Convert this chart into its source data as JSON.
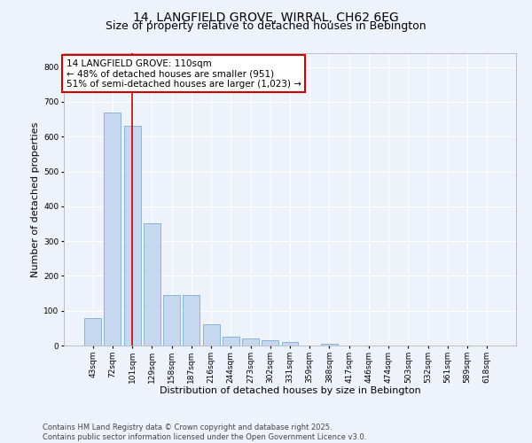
{
  "title_line1": "14, LANGFIELD GROVE, WIRRAL, CH62 6EG",
  "title_line2": "Size of property relative to detached houses in Bebington",
  "xlabel": "Distribution of detached houses by size in Bebington",
  "ylabel": "Number of detached properties",
  "categories": [
    "43sqm",
    "72sqm",
    "101sqm",
    "129sqm",
    "158sqm",
    "187sqm",
    "216sqm",
    "244sqm",
    "273sqm",
    "302sqm",
    "331sqm",
    "359sqm",
    "388sqm",
    "417sqm",
    "446sqm",
    "474sqm",
    "503sqm",
    "532sqm",
    "561sqm",
    "589sqm",
    "618sqm"
  ],
  "values": [
    80,
    670,
    630,
    350,
    145,
    145,
    60,
    25,
    20,
    15,
    10,
    0,
    5,
    0,
    0,
    0,
    0,
    0,
    0,
    0,
    0
  ],
  "bar_color": "#c5d8f0",
  "bar_edge_color": "#7aadd4",
  "vline_x_index": 2,
  "vline_color": "#cc0000",
  "annotation_text": "14 LANGFIELD GROVE: 110sqm\n← 48% of detached houses are smaller (951)\n51% of semi-detached houses are larger (1,023) →",
  "annotation_box_edge_color": "#cc0000",
  "ylim": [
    0,
    840
  ],
  "yticks": [
    0,
    100,
    200,
    300,
    400,
    500,
    600,
    700,
    800
  ],
  "footer_line1": "Contains HM Land Registry data © Crown copyright and database right 2025.",
  "footer_line2": "Contains public sector information licensed under the Open Government Licence v3.0.",
  "bg_color": "#eef2fa",
  "plot_bg_color": "#eef2fa",
  "grid_color": "#ffffff",
  "title_fontsize": 10,
  "subtitle_fontsize": 9,
  "tick_fontsize": 6.5,
  "label_fontsize": 8,
  "footer_fontsize": 6,
  "annotation_fontsize": 7.5
}
